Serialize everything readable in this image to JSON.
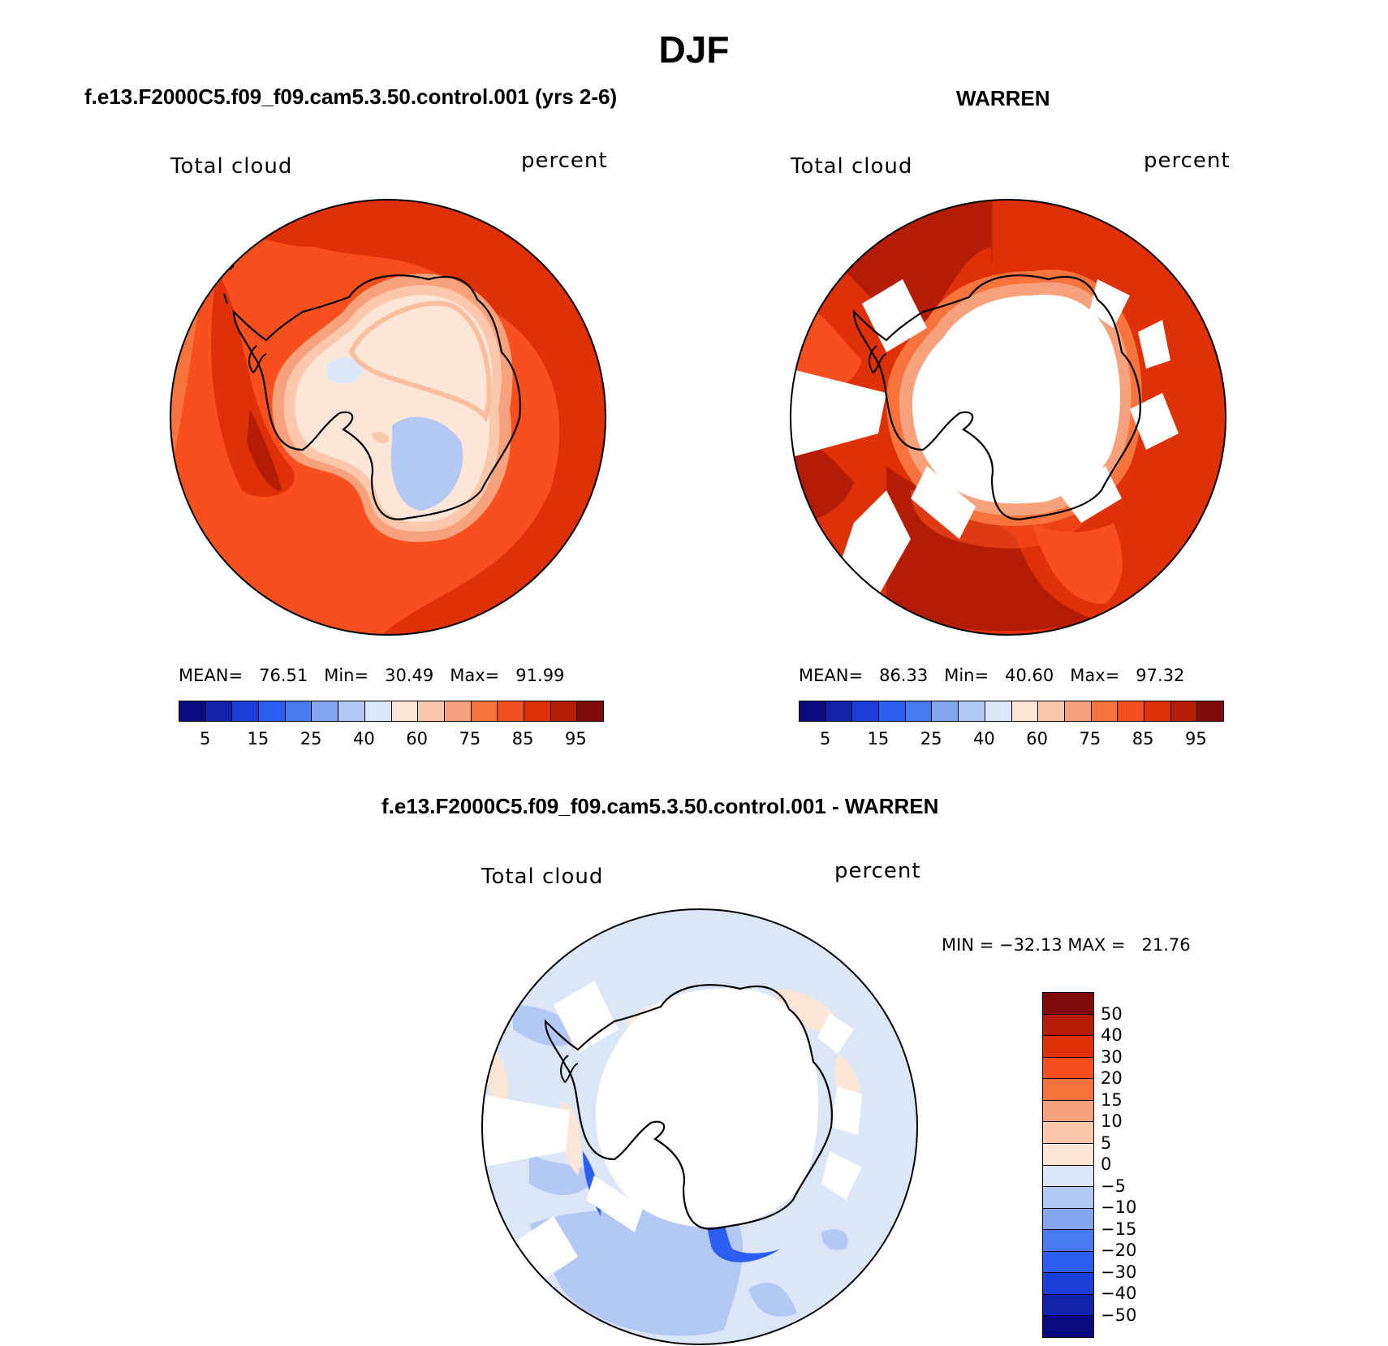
{
  "title": "DJF",
  "panels": [
    {
      "case_title": "f.e13.F2000C5.f09_f09.cam5.3.50.control.001 (yrs 2-6)",
      "variable": "Total cloud",
      "units": "percent",
      "stats": "MEAN=   76.51   Min=   30.49   Max=   91.99",
      "colorbar_labels": [
        "5",
        "15",
        "25",
        "40",
        "60",
        "75",
        "85",
        "95"
      ]
    },
    {
      "case_title": "WARREN",
      "variable": "Total cloud",
      "units": "percent",
      "stats": "MEAN=   86.33   Min=   40.60   Max=   97.32",
      "colorbar_labels": [
        "5",
        "15",
        "25",
        "40",
        "60",
        "75",
        "85",
        "95"
      ]
    },
    {
      "case_title": "f.e13.F2000C5.f09_f09.cam5.3.50.control.001 - WARREN",
      "variable": "Total cloud",
      "units": "percent",
      "stats": "MIN = −32.13 MAX =   21.76",
      "colorbar_labels": [
        "50",
        "40",
        "30",
        "20",
        "15",
        "10",
        "5",
        "0",
        "−5",
        "−10",
        "−15",
        "−20",
        "−30",
        "−40",
        "−50"
      ]
    }
  ],
  "colors": {
    "abs_scale": [
      "#0a0a7d",
      "#0f22a8",
      "#1a3ed6",
      "#2c5ef2",
      "#4a7af2",
      "#86a5f0",
      "#b4c8f5",
      "#dbe7f8",
      "#fde6d6",
      "#fbc8ac",
      "#f7a27c",
      "#f7743f",
      "#f2501e",
      "#e03008",
      "#b31d05",
      "#7f0c08"
    ],
    "diff_scale": [
      "#7f0c08",
      "#b31d05",
      "#e03008",
      "#f7501e",
      "#f7743f",
      "#f7a27c",
      "#fbc8ac",
      "#fde6d6",
      "#dbe7f8",
      "#b4c8f5",
      "#86a5f0",
      "#4a7af2",
      "#2c5ef2",
      "#1a3ed6",
      "#0f22a8",
      "#0a0a7d"
    ]
  }
}
